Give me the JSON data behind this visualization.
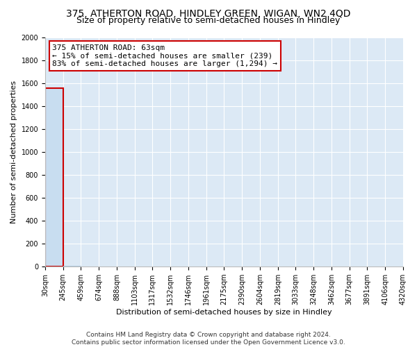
{
  "title": "375, ATHERTON ROAD, HINDLEY GREEN, WIGAN, WN2 4QD",
  "subtitle": "Size of property relative to semi-detached houses in Hindley",
  "xlabel": "Distribution of semi-detached houses by size in Hindley",
  "ylabel": "Number of semi-detached properties",
  "annotation_lines": [
    "375 ATHERTON ROAD: 63sqm",
    "← 15% of semi-detached houses are smaller (239)",
    "83% of semi-detached houses are larger (1,294) →"
  ],
  "footer_lines": [
    "Contains HM Land Registry data © Crown copyright and database right 2024.",
    "Contains public sector information licensed under the Open Government Licence v3.0."
  ],
  "bin_edges": [
    30,
    245,
    459,
    674,
    888,
    1103,
    1317,
    1532,
    1746,
    1961,
    2175,
    2390,
    2604,
    2819,
    3033,
    3248,
    3462,
    3677,
    3891,
    4106,
    4320
  ],
  "bar_heights": [
    1560,
    5,
    3,
    2,
    1,
    1,
    1,
    0,
    0,
    0,
    0,
    0,
    0,
    0,
    0,
    0,
    0,
    0,
    0,
    0
  ],
  "bar_color": "#c8ddf0",
  "bar_edge_color": "#9fbdd4",
  "highlight_bar_edge_color": "#cc0000",
  "annotation_box_edge_color": "#cc0000",
  "ylim": [
    0,
    2000
  ],
  "yticks": [
    0,
    200,
    400,
    600,
    800,
    1000,
    1200,
    1400,
    1600,
    1800,
    2000
  ],
  "bg_color": "#dce9f5",
  "grid_color": "#ffffff",
  "title_fontsize": 10,
  "subtitle_fontsize": 9,
  "axis_label_fontsize": 8,
  "tick_fontsize": 7,
  "annotation_fontsize": 8,
  "footer_fontsize": 6.5
}
